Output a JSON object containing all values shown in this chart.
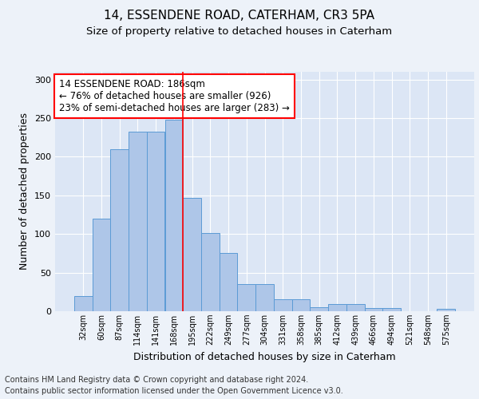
{
  "title1": "14, ESSENDENE ROAD, CATERHAM, CR3 5PA",
  "title2": "Size of property relative to detached houses in Caterham",
  "xlabel": "Distribution of detached houses by size in Caterham",
  "ylabel": "Number of detached properties",
  "categories": [
    "32sqm",
    "60sqm",
    "87sqm",
    "114sqm",
    "141sqm",
    "168sqm",
    "195sqm",
    "222sqm",
    "249sqm",
    "277sqm",
    "304sqm",
    "331sqm",
    "358sqm",
    "385sqm",
    "412sqm",
    "439sqm",
    "466sqm",
    "494sqm",
    "521sqm",
    "548sqm",
    "575sqm"
  ],
  "values": [
    20,
    120,
    210,
    232,
    232,
    248,
    147,
    101,
    75,
    35,
    35,
    15,
    15,
    5,
    9,
    9,
    4,
    4,
    0,
    0,
    3
  ],
  "bar_color": "#aec6e8",
  "bar_edge_color": "#5b9bd5",
  "bar_width": 1.0,
  "property_line_x": 5.5,
  "annotation_text": "14 ESSENDENE ROAD: 186sqm\n← 76% of detached houses are smaller (926)\n23% of semi-detached houses are larger (283) →",
  "annotation_box_color": "white",
  "annotation_box_edge_color": "red",
  "vline_color": "red",
  "ylim": [
    0,
    310
  ],
  "yticks": [
    0,
    50,
    100,
    150,
    200,
    250,
    300
  ],
  "fig_bg_color": "#edf2f9",
  "plot_bg_color": "#dce6f5",
  "grid_color": "white",
  "footer1": "Contains HM Land Registry data © Crown copyright and database right 2024.",
  "footer2": "Contains public sector information licensed under the Open Government Licence v3.0.",
  "title1_fontsize": 11,
  "title2_fontsize": 9.5,
  "xlabel_fontsize": 9,
  "ylabel_fontsize": 9,
  "annotation_fontsize": 8.5,
  "footer_fontsize": 7
}
